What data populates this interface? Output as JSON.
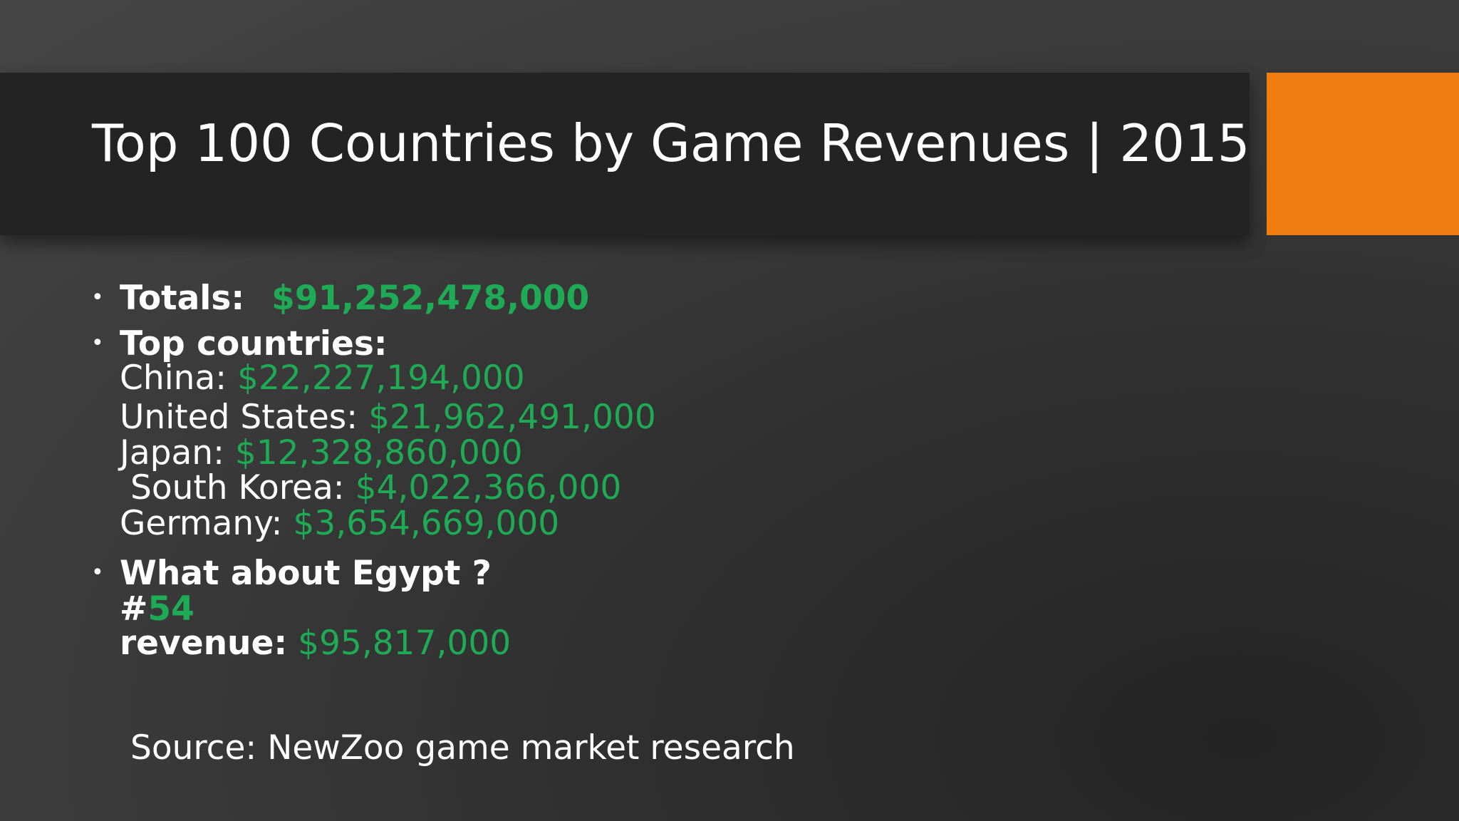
{
  "title": "Top 100 Countries by Game Revenues | 2015",
  "accent_color": "#ef7d0f",
  "value_color": "#1faa55",
  "bullets": {
    "totals": {
      "label": "Totals:",
      "value": "$91,252,478,000"
    },
    "top_countries": {
      "label": "Top countries:",
      "items": [
        {
          "country": "China:",
          "value": "$22,227,194,000"
        },
        {
          "country": "United States:",
          "value": "$21,962,491,000"
        },
        {
          "country": "Japan:",
          "value": "$12,328,860,000"
        },
        {
          "country": "South Korea:",
          "value": "$4,022,366,000"
        },
        {
          "country": "Germany:",
          "value": "$3,654,669,000"
        }
      ]
    },
    "egypt": {
      "label": "What about Egypt ?",
      "rank_prefix": "#",
      "rank_value": "54",
      "revenue_label": "revenue:",
      "revenue_value": "$95,817,000"
    }
  },
  "source": "Source: NewZoo game market research"
}
